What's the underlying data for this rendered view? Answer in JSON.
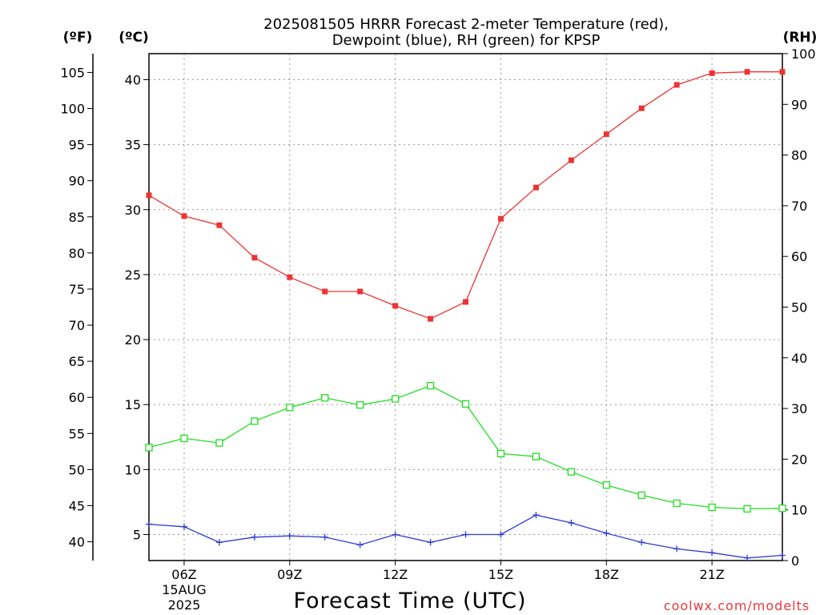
{
  "chart_data": {
    "type": "line",
    "title_lines": [
      "2025081505 HRRR Forecast 2-meter Temperature (red),",
      "Dewpoint (blue), RH (green) for KPSP"
    ],
    "xlabel": "Forecast Time (UTC)",
    "credit": "coolwx.com/modelts",
    "x_hours": [
      5,
      6,
      7,
      8,
      9,
      10,
      11,
      12,
      13,
      14,
      15,
      16,
      17,
      18,
      19,
      20,
      21,
      22,
      23
    ],
    "xlim": [
      5,
      23
    ],
    "x_ticks": [
      {
        "hour": 6,
        "lines": [
          "06Z",
          "15AUG",
          "2025"
        ]
      },
      {
        "hour": 9,
        "lines": [
          "09Z"
        ]
      },
      {
        "hour": 12,
        "lines": [
          "12Z"
        ]
      },
      {
        "hour": 15,
        "lines": [
          "15Z"
        ]
      },
      {
        "hour": 18,
        "lines": [
          "18Z"
        ]
      },
      {
        "hour": 21,
        "lines": [
          "21Z"
        ]
      }
    ],
    "axes": {
      "celsius": {
        "unit_label": "(ºC)",
        "ticks": [
          5,
          10,
          15,
          20,
          25,
          30,
          35,
          40
        ],
        "range": [
          3,
          42
        ]
      },
      "fahrenheit": {
        "unit_label": "(ºF)",
        "ticks": [
          40,
          45,
          50,
          55,
          60,
          65,
          70,
          75,
          80,
          85,
          90,
          95,
          100,
          105
        ]
      },
      "rh": {
        "unit_label": "(RH)",
        "ticks": [
          0,
          10,
          20,
          30,
          40,
          50,
          60,
          70,
          80,
          90,
          100
        ],
        "range": [
          0,
          100
        ]
      }
    },
    "grid": true,
    "series": [
      {
        "key": "temperature",
        "color": "#ee3333",
        "marker": "filled-square",
        "axis": "celsius",
        "values": [
          31.1,
          29.5,
          28.8,
          26.3,
          24.8,
          23.7,
          23.7,
          22.6,
          21.6,
          22.9,
          29.3,
          31.7,
          33.8,
          35.8,
          37.8,
          39.6,
          40.5,
          40.6,
          40.6
        ]
      },
      {
        "key": "dewpoint",
        "color": "#2e3ad8",
        "marker": "plus",
        "axis": "celsius",
        "values": [
          5.8,
          5.6,
          4.4,
          4.8,
          4.9,
          4.8,
          4.2,
          5.0,
          4.4,
          5.0,
          5.0,
          6.5,
          5.9,
          5.1,
          4.4,
          3.9,
          3.6,
          3.2,
          3.4
        ]
      },
      {
        "key": "rh",
        "color": "#22dd22",
        "marker": "open-square",
        "axis": "rh",
        "values": [
          22.3,
          24.1,
          23.2,
          27.5,
          30.2,
          32.1,
          30.7,
          31.9,
          34.5,
          30.9,
          21.1,
          20.5,
          17.5,
          14.9,
          12.9,
          11.3,
          10.5,
          10.2,
          10.3
        ]
      }
    ]
  }
}
